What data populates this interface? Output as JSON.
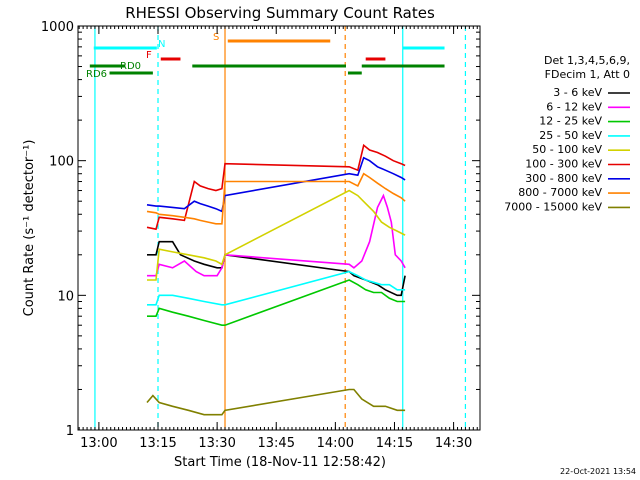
{
  "chart_data": {
    "type": "line",
    "title": "RHESSI Observing Summary Count Rates",
    "xlabel": "Start Time (18-Nov-11 12:58:42)",
    "ylabel": "Count Rate (s⁻¹ detector⁻¹)",
    "yscale": "log",
    "ylim": [
      1,
      1000
    ],
    "xlim_minutes_after_start": [
      -4,
      98
    ],
    "x_ticks": [
      {
        "label": "13:00",
        "value": 1.3
      },
      {
        "label": "13:15",
        "value": 16.3
      },
      {
        "label": "13:30",
        "value": 31.3
      },
      {
        "label": "13:45",
        "value": 46.3
      },
      {
        "label": "14:00",
        "value": 61.3
      },
      {
        "label": "14:15",
        "value": 76.3
      },
      {
        "label": "14:30",
        "value": 91.3
      }
    ],
    "y_ticks": [
      {
        "label": "1",
        "value": 1
      },
      {
        "label": "10",
        "value": 10
      },
      {
        "label": "100",
        "value": 100
      },
      {
        "label": "1000",
        "value": 1000
      }
    ],
    "legend": {
      "placement": "right",
      "header": [
        "Det 1,3,4,5,6,9,",
        "FDecim 1, Att 0"
      ]
    },
    "series": [
      {
        "name": "3 - 6 keV",
        "color": "#000000",
        "values": [
          [
            13.5,
            20
          ],
          [
            15.8,
            20
          ],
          [
            16.6,
            25
          ],
          [
            20,
            25
          ],
          [
            22,
            20
          ],
          [
            25.5,
            18
          ],
          [
            28,
            17
          ],
          [
            31.3,
            16
          ],
          [
            32.5,
            16
          ],
          [
            33.3,
            20
          ],
          [
            64.8,
            15
          ],
          [
            66,
            14
          ],
          [
            69,
            13
          ],
          [
            72,
            12
          ],
          [
            74,
            11
          ],
          [
            77,
            10
          ],
          [
            78,
            10
          ],
          [
            79,
            14
          ]
        ]
      },
      {
        "name": "6 - 12 keV",
        "color": "#ff00ff",
        "values": [
          [
            13.5,
            14
          ],
          [
            15.8,
            14
          ],
          [
            16.6,
            17
          ],
          [
            20,
            16
          ],
          [
            23,
            18
          ],
          [
            26,
            15
          ],
          [
            28,
            14
          ],
          [
            31.3,
            14
          ],
          [
            32.5,
            16
          ],
          [
            33.3,
            20
          ],
          [
            64.8,
            17
          ],
          [
            66,
            16
          ],
          [
            68,
            18
          ],
          [
            70,
            25
          ],
          [
            72,
            45
          ],
          [
            73.5,
            55
          ],
          [
            74.5,
            45
          ],
          [
            75.5,
            35
          ],
          [
            76.5,
            20
          ],
          [
            78,
            18
          ],
          [
            79,
            16
          ]
        ]
      },
      {
        "name": "12 - 25 keV",
        "color": "#00c800",
        "values": [
          [
            13.5,
            7
          ],
          [
            15.8,
            7
          ],
          [
            16.6,
            8
          ],
          [
            20,
            7.5
          ],
          [
            24,
            7
          ],
          [
            28,
            6.5
          ],
          [
            32.5,
            6
          ],
          [
            33.3,
            6
          ],
          [
            64.8,
            13
          ],
          [
            67,
            12
          ],
          [
            69,
            11
          ],
          [
            71,
            10.5
          ],
          [
            73,
            10.5
          ],
          [
            75,
            9.5
          ],
          [
            77,
            9
          ],
          [
            79,
            9
          ]
        ]
      },
      {
        "name": "25 - 50 keV",
        "color": "#00ffff",
        "values": [
          [
            13.5,
            8.5
          ],
          [
            15.8,
            8.5
          ],
          [
            16.6,
            10
          ],
          [
            20,
            10
          ],
          [
            24,
            9.5
          ],
          [
            28,
            9
          ],
          [
            32.5,
            8.5
          ],
          [
            33.3,
            8.5
          ],
          [
            64.8,
            15
          ],
          [
            67,
            14
          ],
          [
            69,
            13
          ],
          [
            71,
            12.5
          ],
          [
            73,
            12
          ],
          [
            75,
            12
          ],
          [
            77,
            11
          ],
          [
            79,
            11
          ]
        ]
      },
      {
        "name": "50 - 100 keV",
        "color": "#d2d200",
        "values": [
          [
            13.5,
            13
          ],
          [
            15.8,
            13
          ],
          [
            16.6,
            22
          ],
          [
            20,
            21
          ],
          [
            24,
            20
          ],
          [
            28,
            19
          ],
          [
            31,
            18
          ],
          [
            32.5,
            17
          ],
          [
            33.3,
            20
          ],
          [
            64.8,
            60
          ],
          [
            67,
            55
          ],
          [
            69,
            48
          ],
          [
            71,
            42
          ],
          [
            73,
            35
          ],
          [
            75,
            32
          ],
          [
            77,
            30
          ],
          [
            79,
            28
          ]
        ]
      },
      {
        "name": "100 - 300 keV",
        "color": "#e60000",
        "values": [
          [
            13.5,
            32
          ],
          [
            15.8,
            31
          ],
          [
            16.6,
            38
          ],
          [
            20,
            37
          ],
          [
            23,
            36
          ],
          [
            25.5,
            70
          ],
          [
            27,
            65
          ],
          [
            29,
            62
          ],
          [
            31,
            60
          ],
          [
            32.5,
            62
          ],
          [
            33.3,
            95
          ],
          [
            64.8,
            90
          ],
          [
            67,
            85
          ],
          [
            68.5,
            130
          ],
          [
            70,
            120
          ],
          [
            72,
            115
          ],
          [
            74,
            108
          ],
          [
            76,
            100
          ],
          [
            78,
            95
          ],
          [
            79,
            92
          ]
        ]
      },
      {
        "name": "300 - 800 keV",
        "color": "#0000e6",
        "values": [
          [
            13.5,
            47
          ],
          [
            15.8,
            46
          ],
          [
            16.6,
            46
          ],
          [
            20,
            45
          ],
          [
            23,
            44
          ],
          [
            25.5,
            50
          ],
          [
            27,
            48
          ],
          [
            29,
            46
          ],
          [
            31,
            44
          ],
          [
            32.5,
            42
          ],
          [
            33.3,
            55
          ],
          [
            64.8,
            80
          ],
          [
            67,
            78
          ],
          [
            68.5,
            105
          ],
          [
            70,
            100
          ],
          [
            72,
            90
          ],
          [
            74,
            85
          ],
          [
            76,
            80
          ],
          [
            78,
            75
          ],
          [
            79,
            72
          ]
        ]
      },
      {
        "name": "800 - 7000 keV",
        "color": "#ff8200",
        "values": [
          [
            13.5,
            42
          ],
          [
            15.8,
            41
          ],
          [
            16.6,
            40
          ],
          [
            20,
            39
          ],
          [
            23,
            38
          ],
          [
            25.5,
            37
          ],
          [
            27,
            36
          ],
          [
            29,
            35
          ],
          [
            31,
            34
          ],
          [
            32.5,
            34
          ],
          [
            33.3,
            70
          ],
          [
            64.8,
            70
          ],
          [
            67,
            65
          ],
          [
            68.5,
            80
          ],
          [
            70,
            75
          ],
          [
            72,
            68
          ],
          [
            74,
            62
          ],
          [
            76,
            57
          ],
          [
            78,
            53
          ],
          [
            79,
            50
          ]
        ]
      },
      {
        "name": "7000 - 15000 keV",
        "color": "#808000",
        "values": [
          [
            13.5,
            1.6
          ],
          [
            15,
            1.8
          ],
          [
            16.6,
            1.6
          ],
          [
            20,
            1.5
          ],
          [
            24,
            1.4
          ],
          [
            28,
            1.3
          ],
          [
            32.5,
            1.3
          ],
          [
            33.3,
            1.4
          ],
          [
            64.8,
            2
          ],
          [
            66,
            2
          ],
          [
            68,
            1.7
          ],
          [
            71,
            1.5
          ],
          [
            74,
            1.5
          ],
          [
            77,
            1.4
          ],
          [
            79,
            1.4
          ]
        ]
      }
    ],
    "state_bars": [
      {
        "label": "",
        "color": "#00ffff",
        "segments": [
          [
            0,
            16
          ]
        ]
      },
      {
        "label": "N",
        "color": "#00ffff",
        "segments": [
          [
            78.4,
            89
          ]
        ]
      },
      {
        "label": "F",
        "color": "#e60000",
        "segments": [
          [
            17,
            22
          ],
          [
            69,
            74
          ]
        ]
      },
      {
        "label": "S",
        "color": "#ff8200",
        "segments": [
          [
            34,
            60
          ]
        ]
      },
      {
        "label": "RD0",
        "color": "#008200",
        "segments": [
          [
            -1,
            8
          ],
          [
            25,
            64
          ],
          [
            68,
            89
          ]
        ]
      },
      {
        "label": "RD6",
        "color": "#008200",
        "segments": [
          [
            4,
            15
          ],
          [
            64.5,
            68
          ]
        ]
      }
    ],
    "vertical_lines": [
      {
        "value": 0.3,
        "color": "#00ffff",
        "style": "solid"
      },
      {
        "value": 16.3,
        "color": "#00ffff",
        "style": "dashed"
      },
      {
        "value": 33.3,
        "color": "#ff8200",
        "style": "solid"
      },
      {
        "value": 63.8,
        "color": "#ff8200",
        "style": "dashed"
      },
      {
        "value": 78.4,
        "color": "#00ffff",
        "style": "solid"
      },
      {
        "value": 94.3,
        "color": "#00ffff",
        "style": "dashed"
      }
    ],
    "timestamp": "22-Oct-2021 13:54"
  }
}
